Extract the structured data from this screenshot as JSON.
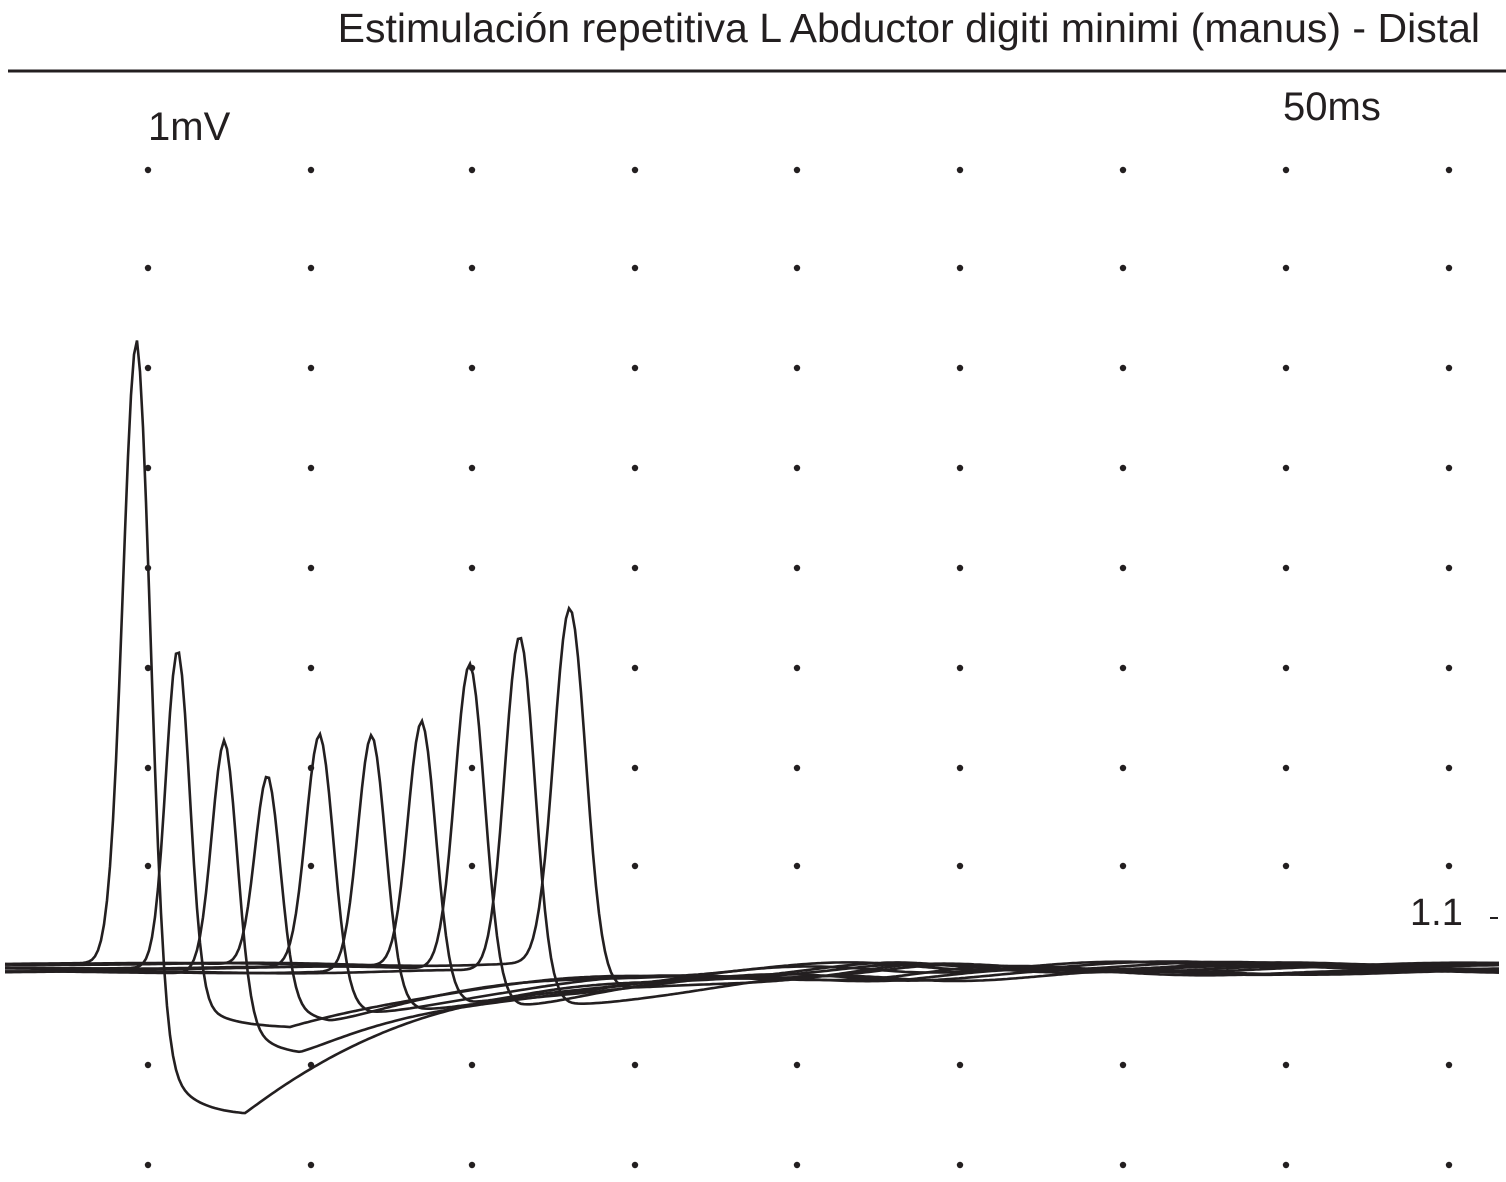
{
  "title": "Estimulación repetitiva L Abductor digiti minimi (manus) - Distal",
  "scale_amplitude": "1mV",
  "scale_time": "50ms",
  "trace_label": "1.1"
}
